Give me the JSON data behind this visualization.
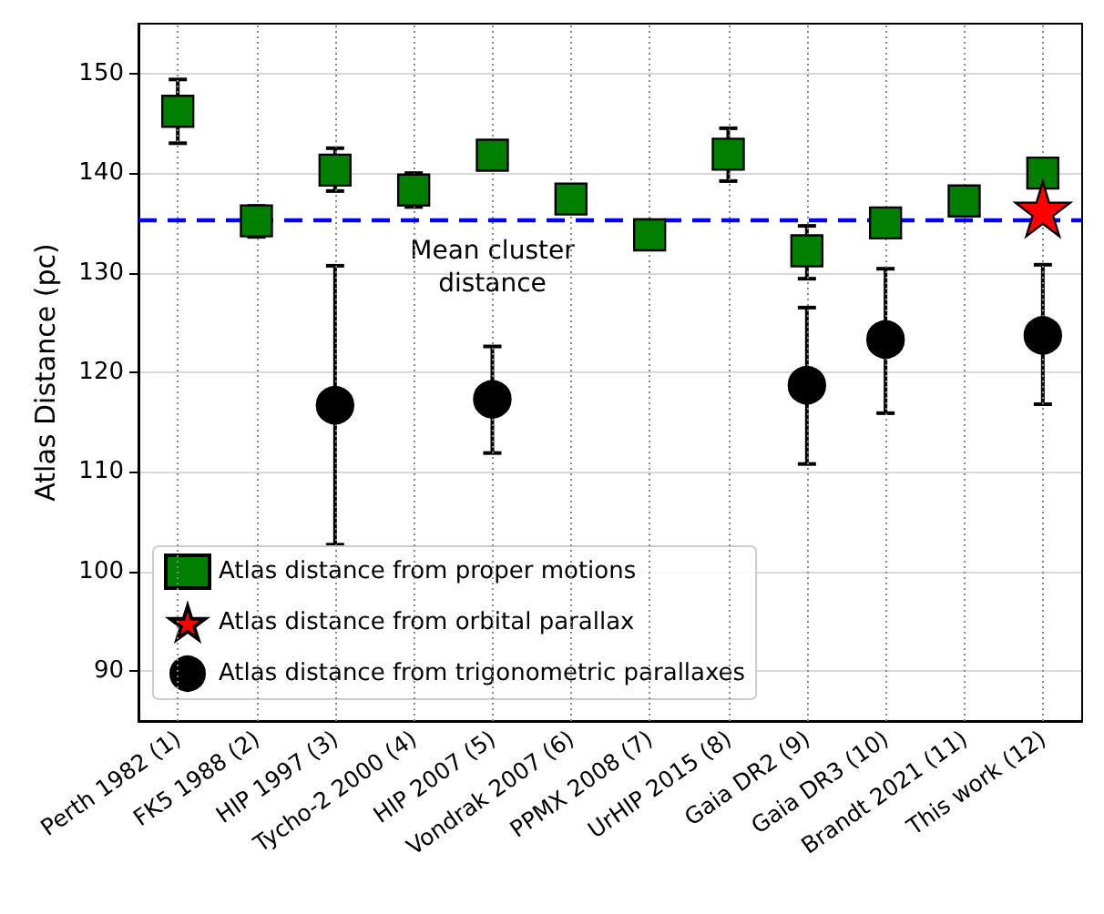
{
  "chart_data": {
    "type": "scatter",
    "ylabel": "Atlas Distance (pc)",
    "categories": [
      "Perth 1982 (1)",
      "FK5 1988 (2)",
      "HIP 1997 (3)",
      "Tycho-2 2000 (4)",
      "HIP 2007 (5)",
      "Vondrak 2007 (6)",
      "PPMX 2008 (7)",
      "UrHIP 2015 (8)",
      "Gaia DR2 (9)",
      "Gaia DR3 (10)",
      "Brandt 2021 (11)",
      "This work (12)"
    ],
    "series": [
      {
        "name": "Atlas distance from proper motions",
        "color": "#007f00",
        "marker": "square",
        "values": [
          146.2,
          135.2,
          140.3,
          138.3,
          141.8,
          137.4,
          133.8,
          141.9,
          132.2,
          135.0,
          137.2,
          140.0
        ],
        "errors": [
          [
            143.0,
            149.4
          ],
          [
            133.6,
            136.7
          ],
          [
            138.2,
            142.5
          ],
          [
            136.6,
            140.0
          ],
          null,
          [
            136.4,
            138.6
          ],
          null,
          [
            139.2,
            144.5
          ],
          [
            129.4,
            134.7
          ],
          null,
          null,
          null
        ]
      },
      {
        "name": "Atlas distance from orbital parallax",
        "color": "#ff0000",
        "marker": "star",
        "values": [
          null,
          null,
          null,
          null,
          null,
          null,
          null,
          null,
          null,
          null,
          null,
          136.4
        ]
      },
      {
        "name": "Atlas distance from trigonometric parallaxes",
        "color": "#000000",
        "marker": "circle",
        "values": [
          null,
          null,
          116.7,
          null,
          117.3,
          null,
          null,
          null,
          118.7,
          123.3,
          null,
          123.7
        ],
        "errors": [
          null,
          null,
          [
            102.7,
            130.7
          ],
          null,
          [
            111.9,
            122.6
          ],
          null,
          null,
          null,
          [
            110.8,
            126.5
          ],
          [
            115.9,
            130.4
          ],
          null,
          [
            116.8,
            130.8
          ]
        ]
      }
    ],
    "ref_lines": [
      {
        "axis": "y",
        "value": 135.3,
        "label": "Mean cluster\ndistance",
        "color": "#0000ff",
        "line_style": "dashed"
      }
    ],
    "ylim": [
      85,
      155
    ],
    "yticks": [
      90,
      100,
      110,
      120,
      130,
      140,
      150
    ],
    "grid": true,
    "legend": "bottom left"
  }
}
